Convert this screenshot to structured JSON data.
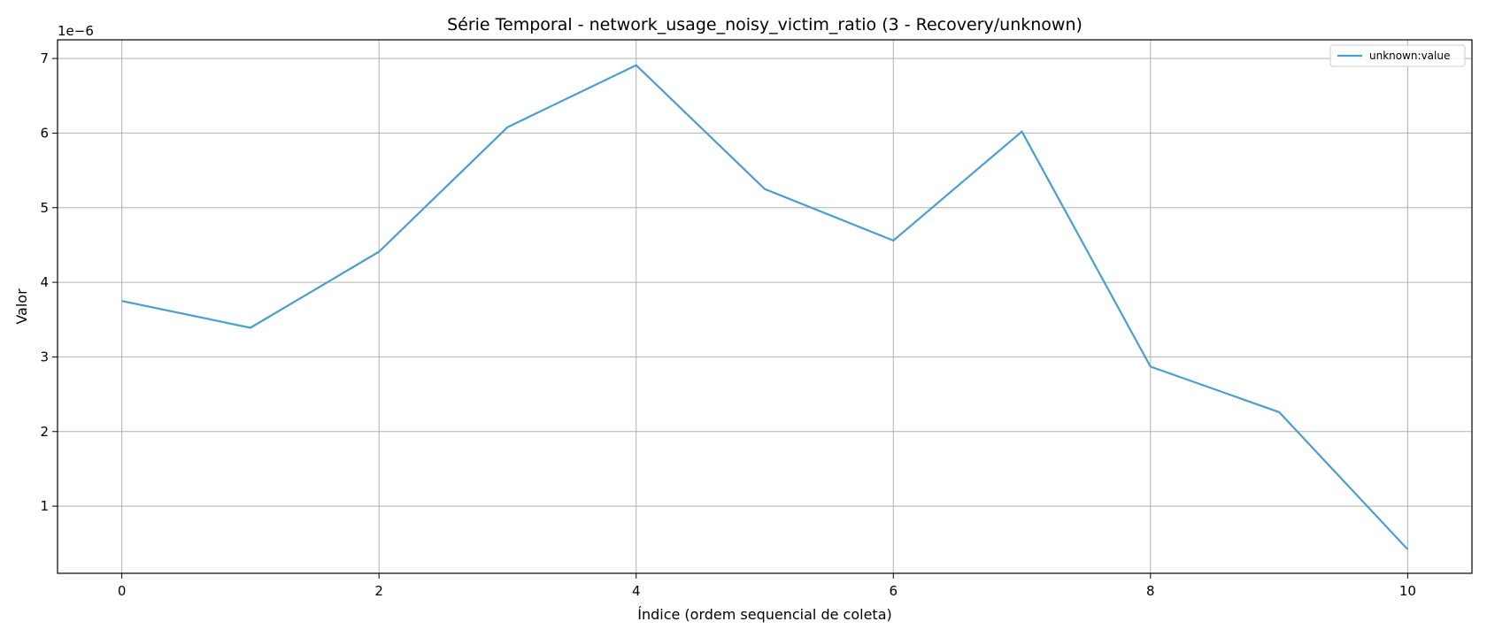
{
  "chart_data": {
    "type": "line",
    "title": "Série Temporal - network_usage_noisy_victim_ratio (3 - Recovery/unknown)",
    "xlabel": "Índice (ordem sequencial de coleta)",
    "ylabel": "Valor",
    "y_offset_label": "1e−6",
    "xlim": [
      -0.5,
      10.5
    ],
    "ylim": [
      0.1,
      7.25
    ],
    "xticks": [
      0,
      2,
      4,
      6,
      8,
      10
    ],
    "yticks": [
      1,
      2,
      3,
      4,
      5,
      6,
      7
    ],
    "grid": true,
    "legend_position": "top-right",
    "series": [
      {
        "name": "unknown:value",
        "color": "#4a9fcf",
        "x": [
          0,
          1,
          2,
          3,
          4,
          5,
          6,
          7,
          8,
          9,
          10
        ],
        "y": [
          3.75,
          3.39,
          4.41,
          6.08,
          6.91,
          5.25,
          4.56,
          6.02,
          2.87,
          2.26,
          0.42
        ]
      }
    ]
  }
}
